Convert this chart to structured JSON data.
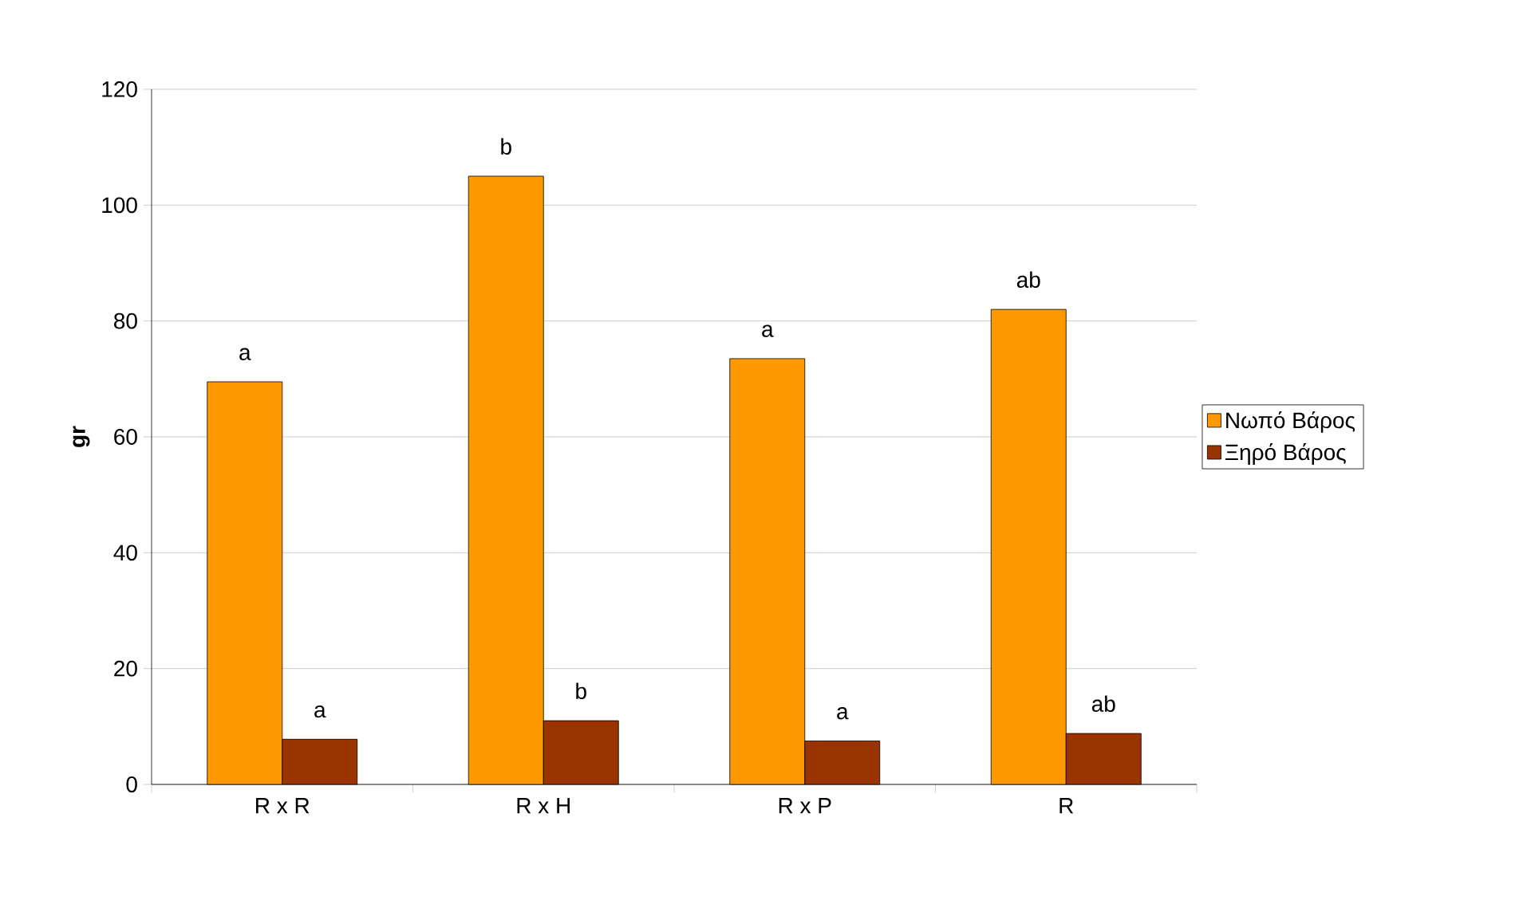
{
  "chart_data": {
    "type": "bar",
    "ylabel": "gr",
    "categories": [
      "R x R",
      "R x H",
      "R x P",
      "R"
    ],
    "series": [
      {
        "name": "Νωπό Βάρος",
        "color": "#ff9900",
        "values": [
          69.5,
          105,
          73.5,
          82
        ]
      },
      {
        "name": "Ξηρό Βάρος",
        "color": "#993300",
        "values": [
          7.8,
          11,
          7.5,
          8.8
        ]
      }
    ],
    "ylim": [
      0,
      120
    ],
    "yticks": [
      0,
      20,
      40,
      60,
      80,
      100,
      120
    ],
    "grid": "y",
    "legend": "right",
    "annotations": [
      {
        "text": "a",
        "x": "R x R",
        "y": 69.5
      },
      {
        "text": "a",
        "x": "R x R",
        "y": 7.8
      },
      {
        "text": "b",
        "x": "R x H",
        "y": 105
      },
      {
        "text": "b",
        "x": "R x H",
        "y": 11
      },
      {
        "text": "a",
        "x": "R x P",
        "y": 73.5
      },
      {
        "text": "a",
        "x": "R x P",
        "y": 7.5
      },
      {
        "text": "ab",
        "x": "R",
        "y": 82
      },
      {
        "text": "ab",
        "x": "R",
        "y": 8.8
      }
    ]
  }
}
